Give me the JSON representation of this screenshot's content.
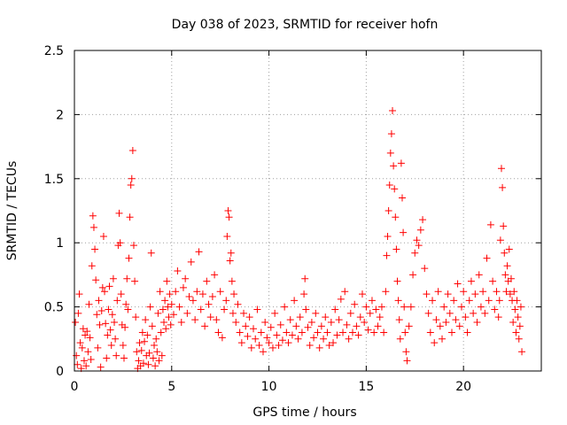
{
  "chart_data": {
    "type": "scatter",
    "title": "Day 038 of 2023, SRMTID for receiver hofn",
    "xlabel": "GPS time / hours",
    "ylabel": "SRMTID / TECUs",
    "xlim": [
      0,
      24
    ],
    "ylim": [
      0,
      2.5
    ],
    "xticks": [
      0,
      5,
      10,
      15,
      20
    ],
    "yticks": [
      0,
      0.5,
      1,
      1.5,
      2,
      2.5
    ],
    "xtick_labels": [
      "0",
      "5",
      "10",
      "15",
      "20"
    ],
    "ytick_labels": [
      "0",
      "0.5",
      "1",
      "1.5",
      "2",
      "2.5"
    ],
    "grid": true,
    "marker": "+",
    "color": "#ff0000",
    "series": [
      {
        "name": "hofn",
        "points": [
          [
            0.05,
            0.38
          ],
          [
            0.1,
            0.12
          ],
          [
            0.15,
            0.05
          ],
          [
            0.2,
            0.45
          ],
          [
            0.25,
            0.6
          ],
          [
            0.3,
            0.22
          ],
          [
            0.35,
            0.02
          ],
          [
            0.4,
            0.18
          ],
          [
            0.45,
            0.33
          ],
          [
            0.5,
            0.08
          ],
          [
            0.55,
            0.28
          ],
          [
            0.6,
            0.04
          ],
          [
            0.65,
            0.31
          ],
          [
            0.7,
            0.15
          ],
          [
            0.75,
            0.52
          ],
          [
            0.8,
            0.26
          ],
          [
            0.85,
            0.09
          ],
          [
            0.9,
            0.82
          ],
          [
            0.95,
            1.21
          ],
          [
            1.0,
            1.12
          ],
          [
            1.05,
            0.95
          ],
          [
            1.1,
            0.71
          ],
          [
            1.15,
            0.44
          ],
          [
            1.2,
            0.18
          ],
          [
            1.25,
            0.55
          ],
          [
            1.3,
            0.36
          ],
          [
            1.35,
            0.03
          ],
          [
            1.4,
            0.47
          ],
          [
            1.45,
            0.65
          ],
          [
            1.5,
            1.05
          ],
          [
            1.55,
            0.62
          ],
          [
            1.6,
            0.37
          ],
          [
            1.65,
            0.1
          ],
          [
            1.7,
            0.28
          ],
          [
            1.75,
            0.48
          ],
          [
            1.8,
            0.66
          ],
          [
            1.85,
            0.32
          ],
          [
            1.9,
            0.2
          ],
          [
            1.95,
            0.44
          ],
          [
            2.0,
            0.72
          ],
          [
            2.05,
            0.38
          ],
          [
            2.1,
            0.25
          ],
          [
            2.15,
            0.12
          ],
          [
            2.2,
            0.55
          ],
          [
            2.25,
            0.98
          ],
          [
            2.3,
            1.23
          ],
          [
            2.35,
            1.0
          ],
          [
            2.4,
            0.6
          ],
          [
            2.45,
            0.36
          ],
          [
            2.5,
            0.2
          ],
          [
            2.55,
            0.1
          ],
          [
            2.6,
            0.34
          ],
          [
            2.65,
            0.52
          ],
          [
            2.7,
            0.72
          ],
          [
            2.75,
            0.48
          ],
          [
            2.8,
            0.88
          ],
          [
            2.85,
            1.2
          ],
          [
            2.9,
            1.45
          ],
          [
            2.95,
            1.5
          ],
          [
            3.0,
            1.72
          ],
          [
            3.05,
            0.98
          ],
          [
            3.1,
            0.7
          ],
          [
            3.15,
            0.42
          ],
          [
            3.2,
            0.15
          ],
          [
            3.25,
            0.02
          ],
          [
            3.3,
            0.08
          ],
          [
            3.35,
            0.22
          ],
          [
            3.4,
            0.04
          ],
          [
            3.45,
            0.16
          ],
          [
            3.5,
            0.3
          ],
          [
            3.55,
            0.06
          ],
          [
            3.6,
            0.23
          ],
          [
            3.65,
            0.4
          ],
          [
            3.7,
            0.12
          ],
          [
            3.75,
            0.28
          ],
          [
            3.8,
            0.05
          ],
          [
            3.85,
            0.14
          ],
          [
            3.9,
            0.5
          ],
          [
            3.95,
            0.92
          ],
          [
            4.0,
            0.35
          ],
          [
            4.05,
            0.1
          ],
          [
            4.1,
            0.2
          ],
          [
            4.15,
            0.04
          ],
          [
            4.2,
            0.25
          ],
          [
            4.25,
            0.15
          ],
          [
            4.3,
            0.45
          ],
          [
            4.35,
            0.08
          ],
          [
            4.4,
            0.62
          ],
          [
            4.45,
            0.3
          ],
          [
            4.5,
            0.12
          ],
          [
            4.55,
            0.48
          ],
          [
            4.6,
            0.38
          ],
          [
            4.65,
            0.55
          ],
          [
            4.7,
            0.33
          ],
          [
            4.75,
            0.7
          ],
          [
            4.8,
            0.5
          ],
          [
            4.85,
            0.42
          ],
          [
            4.9,
            0.6
          ],
          [
            4.95,
            0.36
          ],
          [
            5.0,
            0.52
          ],
          [
            5.1,
            0.44
          ],
          [
            5.2,
            0.62
          ],
          [
            5.3,
            0.78
          ],
          [
            5.4,
            0.5
          ],
          [
            5.5,
            0.38
          ],
          [
            5.6,
            0.65
          ],
          [
            5.7,
            0.72
          ],
          [
            5.8,
            0.45
          ],
          [
            5.9,
            0.58
          ],
          [
            6.0,
            0.85
          ],
          [
            6.1,
            0.55
          ],
          [
            6.2,
            0.4
          ],
          [
            6.3,
            0.62
          ],
          [
            6.4,
            0.93
          ],
          [
            6.5,
            0.48
          ],
          [
            6.6,
            0.6
          ],
          [
            6.7,
            0.35
          ],
          [
            6.8,
            0.7
          ],
          [
            6.9,
            0.52
          ],
          [
            7.0,
            0.42
          ],
          [
            7.1,
            0.58
          ],
          [
            7.2,
            0.75
          ],
          [
            7.3,
            0.4
          ],
          [
            7.4,
            0.3
          ],
          [
            7.5,
            0.62
          ],
          [
            7.6,
            0.26
          ],
          [
            7.7,
            0.48
          ],
          [
            7.8,
            0.55
          ],
          [
            7.85,
            1.05
          ],
          [
            7.9,
            1.25
          ],
          [
            7.95,
            1.2
          ],
          [
            8.0,
            0.86
          ],
          [
            8.05,
            0.92
          ],
          [
            8.1,
            0.7
          ],
          [
            8.15,
            0.45
          ],
          [
            8.2,
            0.6
          ],
          [
            8.3,
            0.38
          ],
          [
            8.4,
            0.52
          ],
          [
            8.5,
            0.3
          ],
          [
            8.6,
            0.22
          ],
          [
            8.7,
            0.45
          ],
          [
            8.8,
            0.35
          ],
          [
            8.9,
            0.27
          ],
          [
            9.0,
            0.42
          ],
          [
            9.1,
            0.18
          ],
          [
            9.2,
            0.33
          ],
          [
            9.3,
            0.25
          ],
          [
            9.4,
            0.48
          ],
          [
            9.5,
            0.2
          ],
          [
            9.6,
            0.3
          ],
          [
            9.7,
            0.15
          ],
          [
            9.8,
            0.38
          ],
          [
            9.9,
            0.26
          ],
          [
            10.0,
            0.22
          ],
          [
            10.1,
            0.34
          ],
          [
            10.2,
            0.18
          ],
          [
            10.3,
            0.45
          ],
          [
            10.4,
            0.28
          ],
          [
            10.5,
            0.2
          ],
          [
            10.6,
            0.36
          ],
          [
            10.7,
            0.24
          ],
          [
            10.8,
            0.5
          ],
          [
            10.9,
            0.3
          ],
          [
            11.0,
            0.22
          ],
          [
            11.1,
            0.4
          ],
          [
            11.2,
            0.28
          ],
          [
            11.3,
            0.55
          ],
          [
            11.4,
            0.35
          ],
          [
            11.5,
            0.25
          ],
          [
            11.6,
            0.42
          ],
          [
            11.7,
            0.3
          ],
          [
            11.8,
            0.6
          ],
          [
            11.85,
            0.72
          ],
          [
            11.9,
            0.48
          ],
          [
            12.0,
            0.34
          ],
          [
            12.1,
            0.2
          ],
          [
            12.2,
            0.38
          ],
          [
            12.3,
            0.26
          ],
          [
            12.4,
            0.45
          ],
          [
            12.5,
            0.3
          ],
          [
            12.6,
            0.18
          ],
          [
            12.7,
            0.35
          ],
          [
            12.8,
            0.25
          ],
          [
            12.9,
            0.42
          ],
          [
            13.0,
            0.3
          ],
          [
            13.1,
            0.2
          ],
          [
            13.2,
            0.38
          ],
          [
            13.3,
            0.22
          ],
          [
            13.4,
            0.48
          ],
          [
            13.5,
            0.28
          ],
          [
            13.6,
            0.4
          ],
          [
            13.7,
            0.56
          ],
          [
            13.8,
            0.3
          ],
          [
            13.9,
            0.62
          ],
          [
            14.0,
            0.36
          ],
          [
            14.1,
            0.25
          ],
          [
            14.2,
            0.45
          ],
          [
            14.3,
            0.3
          ],
          [
            14.4,
            0.52
          ],
          [
            14.5,
            0.35
          ],
          [
            14.6,
            0.28
          ],
          [
            14.7,
            0.42
          ],
          [
            14.8,
            0.6
          ],
          [
            14.9,
            0.38
          ],
          [
            15.0,
            0.5
          ],
          [
            15.1,
            0.32
          ],
          [
            15.2,
            0.45
          ],
          [
            15.3,
            0.55
          ],
          [
            15.4,
            0.3
          ],
          [
            15.5,
            0.48
          ],
          [
            15.6,
            0.35
          ],
          [
            15.7,
            0.42
          ],
          [
            15.8,
            0.5
          ],
          [
            15.9,
            0.3
          ],
          [
            16.0,
            0.62
          ],
          [
            16.05,
            0.9
          ],
          [
            16.1,
            1.05
          ],
          [
            16.15,
            1.25
          ],
          [
            16.2,
            1.45
          ],
          [
            16.25,
            1.7
          ],
          [
            16.3,
            1.85
          ],
          [
            16.35,
            2.03
          ],
          [
            16.4,
            1.6
          ],
          [
            16.45,
            1.42
          ],
          [
            16.5,
            1.2
          ],
          [
            16.55,
            0.95
          ],
          [
            16.6,
            0.7
          ],
          [
            16.65,
            0.55
          ],
          [
            16.7,
            0.4
          ],
          [
            16.75,
            0.25
          ],
          [
            16.8,
            1.62
          ],
          [
            16.85,
            1.35
          ],
          [
            16.9,
            1.08
          ],
          [
            16.95,
            0.5
          ],
          [
            17.0,
            0.3
          ],
          [
            17.05,
            0.15
          ],
          [
            17.1,
            0.08
          ],
          [
            17.2,
            0.35
          ],
          [
            17.3,
            0.5
          ],
          [
            17.4,
            0.75
          ],
          [
            17.5,
            0.92
          ],
          [
            17.6,
            1.02
          ],
          [
            17.7,
            0.98
          ],
          [
            17.8,
            1.1
          ],
          [
            17.9,
            1.18
          ],
          [
            18.0,
            0.8
          ],
          [
            18.1,
            0.6
          ],
          [
            18.2,
            0.45
          ],
          [
            18.3,
            0.3
          ],
          [
            18.4,
            0.55
          ],
          [
            18.5,
            0.22
          ],
          [
            18.6,
            0.4
          ],
          [
            18.7,
            0.62
          ],
          [
            18.8,
            0.35
          ],
          [
            18.9,
            0.25
          ],
          [
            19.0,
            0.5
          ],
          [
            19.1,
            0.38
          ],
          [
            19.2,
            0.6
          ],
          [
            19.3,
            0.45
          ],
          [
            19.4,
            0.3
          ],
          [
            19.5,
            0.55
          ],
          [
            19.6,
            0.4
          ],
          [
            19.7,
            0.68
          ],
          [
            19.8,
            0.35
          ],
          [
            19.9,
            0.5
          ],
          [
            20.0,
            0.62
          ],
          [
            20.1,
            0.42
          ],
          [
            20.2,
            0.3
          ],
          [
            20.3,
            0.55
          ],
          [
            20.4,
            0.7
          ],
          [
            20.5,
            0.45
          ],
          [
            20.6,
            0.6
          ],
          [
            20.7,
            0.38
          ],
          [
            20.8,
            0.75
          ],
          [
            20.9,
            0.5
          ],
          [
            21.0,
            0.62
          ],
          [
            21.1,
            0.45
          ],
          [
            21.2,
            0.88
          ],
          [
            21.3,
            0.55
          ],
          [
            21.4,
            1.14
          ],
          [
            21.5,
            0.7
          ],
          [
            21.6,
            0.48
          ],
          [
            21.7,
            0.62
          ],
          [
            21.8,
            0.42
          ],
          [
            21.85,
            0.55
          ],
          [
            21.9,
            1.02
          ],
          [
            21.95,
            1.58
          ],
          [
            22.0,
            1.43
          ],
          [
            22.05,
            1.13
          ],
          [
            22.1,
            0.92
          ],
          [
            22.15,
            0.75
          ],
          [
            22.2,
            0.62
          ],
          [
            22.25,
            0.82
          ],
          [
            22.3,
            0.7
          ],
          [
            22.35,
            0.95
          ],
          [
            22.4,
            0.6
          ],
          [
            22.45,
            0.72
          ],
          [
            22.5,
            0.55
          ],
          [
            22.55,
            0.38
          ],
          [
            22.6,
            0.62
          ],
          [
            22.65,
            0.48
          ],
          [
            22.7,
            0.3
          ],
          [
            22.75,
            0.55
          ],
          [
            22.8,
            0.42
          ],
          [
            22.85,
            0.25
          ],
          [
            22.9,
            0.35
          ],
          [
            22.95,
            0.5
          ],
          [
            23.0,
            0.15
          ]
        ]
      }
    ]
  }
}
